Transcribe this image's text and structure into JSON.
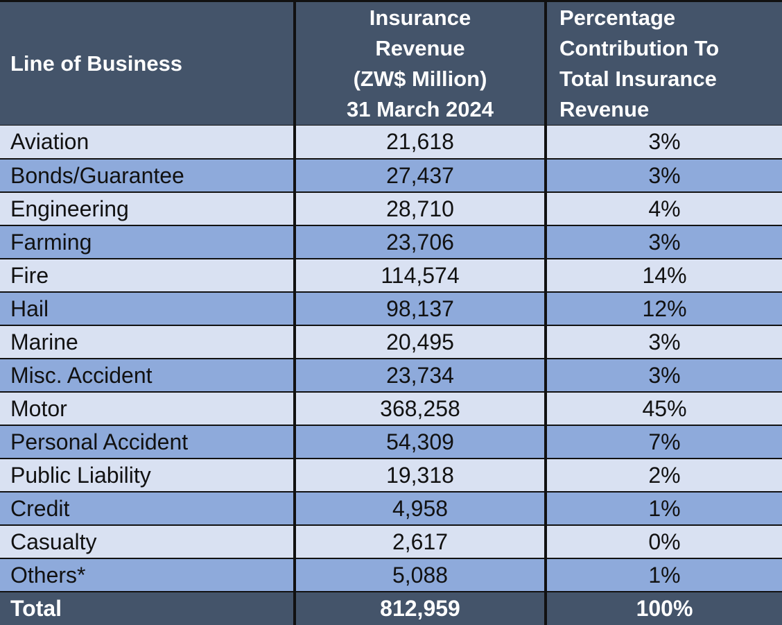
{
  "table": {
    "header": [
      [
        "Line of Business"
      ],
      [
        "Insurance",
        "Revenue",
        "(ZW$ Million)",
        "31 March 2024"
      ],
      [
        "Percentage",
        "Contribution To",
        "Total Insurance",
        "Revenue"
      ]
    ],
    "rows": [
      [
        "Aviation",
        "21,618",
        "3%"
      ],
      [
        "Bonds/Guarantee",
        "27,437",
        "3%"
      ],
      [
        "Engineering",
        "28,710",
        "4%"
      ],
      [
        "Farming",
        "23,706",
        "3%"
      ],
      [
        "Fire",
        "114,574",
        "14%"
      ],
      [
        "Hail",
        "98,137",
        "12%"
      ],
      [
        "Marine",
        "20,495",
        "3%"
      ],
      [
        "Misc. Accident",
        "23,734",
        "3%"
      ],
      [
        "Motor",
        "368,258",
        "45%"
      ],
      [
        "Personal Accident",
        "54,309",
        "7%"
      ],
      [
        "Public Liability",
        "19,318",
        "2%"
      ],
      [
        "Credit",
        "4,958",
        "1%"
      ],
      [
        "Casualty",
        "2,617",
        "0%"
      ],
      [
        "Others*",
        "5,088",
        "1%"
      ]
    ],
    "total": [
      "Total",
      "812,959",
      "100%"
    ]
  }
}
